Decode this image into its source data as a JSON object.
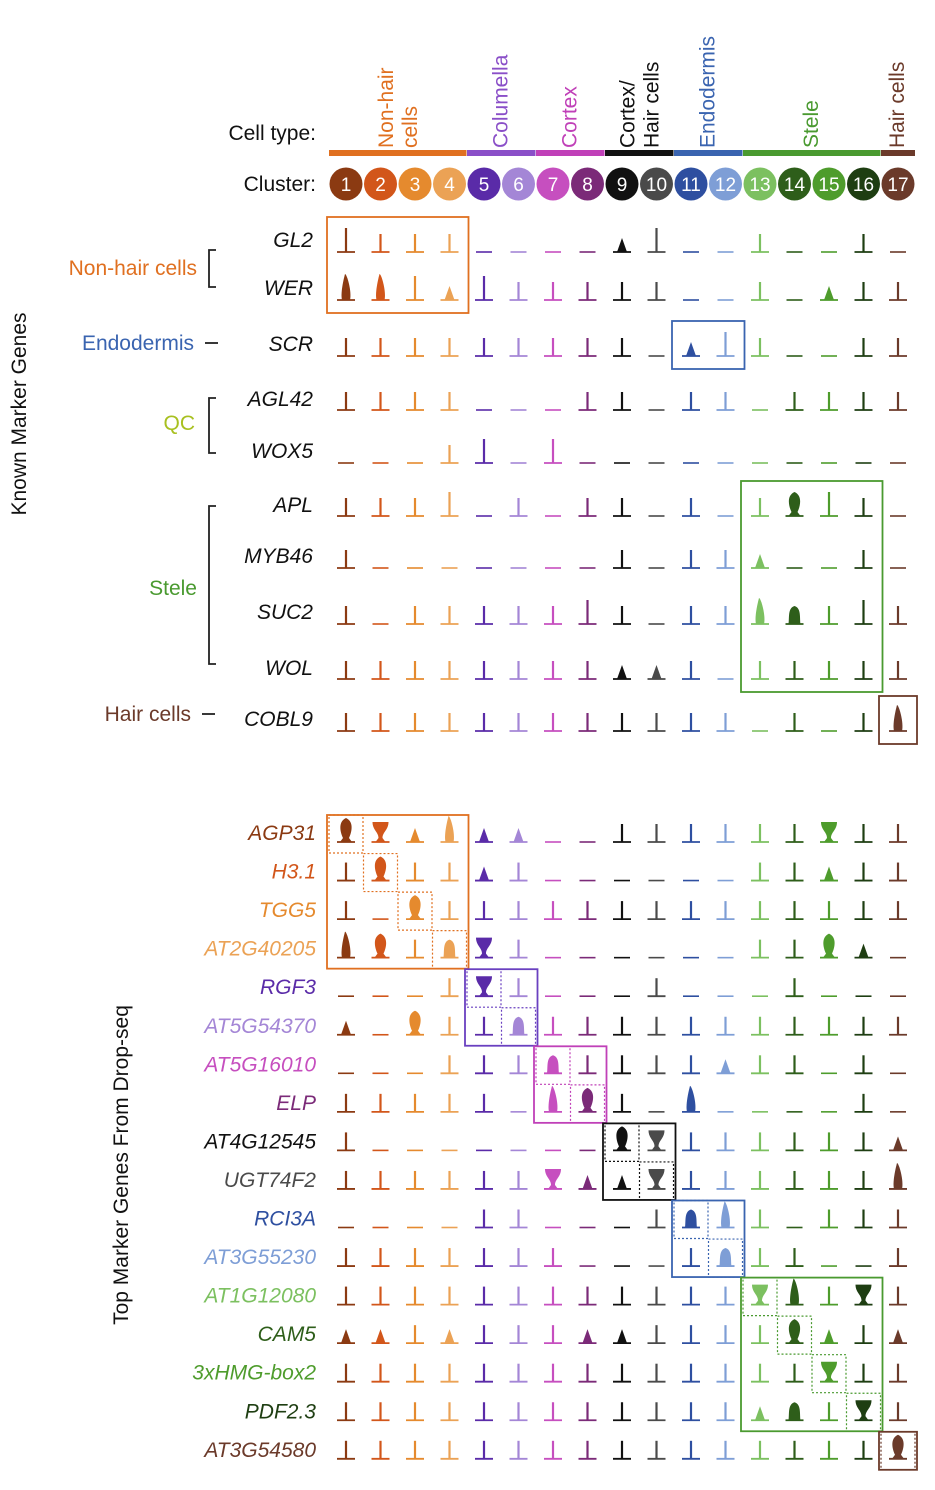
{
  "header": {
    "cell_type_label": "Cell type:",
    "cluster_label": "Cluster:"
  },
  "cell_types": [
    {
      "name": "Non-hair\ncells",
      "color": "#E07020",
      "clusters": [
        1,
        4
      ]
    },
    {
      "name": "Columella",
      "color": "#8A4FC8",
      "clusters": [
        5,
        6
      ]
    },
    {
      "name": "Cortex",
      "color": "#C040B8",
      "clusters": [
        7,
        8
      ]
    },
    {
      "name": "Cortex/\nHair cells",
      "color": "#111111",
      "clusters": [
        9,
        10
      ]
    },
    {
      "name": "Endodermis",
      "color": "#3A64B0",
      "clusters": [
        11,
        12
      ]
    },
    {
      "name": "Stele",
      "color": "#4A9A30",
      "clusters": [
        13,
        16
      ]
    },
    {
      "name": "Hair cells",
      "color": "#6B3A2A",
      "clusters": [
        17,
        17
      ]
    }
  ],
  "clusters": [
    {
      "id": "1",
      "color": "#8B3A12"
    },
    {
      "id": "2",
      "color": "#D2561A"
    },
    {
      "id": "3",
      "color": "#E58A2E"
    },
    {
      "id": "4",
      "color": "#EBA255"
    },
    {
      "id": "5",
      "color": "#5A2BA8"
    },
    {
      "id": "6",
      "color": "#A486D6"
    },
    {
      "id": "7",
      "color": "#C64FBF"
    },
    {
      "id": "8",
      "color": "#7B2A78"
    },
    {
      "id": "9",
      "color": "#111111"
    },
    {
      "id": "10",
      "color": "#4A4A4A"
    },
    {
      "id": "11",
      "color": "#2E4FA0"
    },
    {
      "id": "12",
      "color": "#7E9ED6"
    },
    {
      "id": "13",
      "color": "#7CC060"
    },
    {
      "id": "14",
      "color": "#2E5E1A"
    },
    {
      "id": "15",
      "color": "#4E9C2C"
    },
    {
      "id": "16",
      "color": "#1E3E12"
    },
    {
      "id": "17",
      "color": "#6B3A2A"
    }
  ],
  "known_markers": {
    "axis_label": "Known Marker Genes",
    "genes": [
      "GL2",
      "WER",
      "SCR",
      "AGL42",
      "WOX5",
      "APL",
      "MYB46",
      "SUC2",
      "WOL",
      "COBL9"
    ],
    "groups": [
      {
        "label": "Non-hair cells",
        "color": "#E07020",
        "rows": [
          0,
          1
        ]
      },
      {
        "label": "Endodermis",
        "color": "#3A64B0",
        "rows": [
          2,
          2
        ]
      },
      {
        "label": "QC",
        "color": "#A8C020",
        "rows": [
          3,
          4
        ]
      },
      {
        "label": "Stele",
        "color": "#4A9A30",
        "rows": [
          5,
          8
        ]
      },
      {
        "label": "Hair cells",
        "color": "#6B3A2A",
        "rows": [
          9,
          9
        ]
      }
    ],
    "highlights": [
      {
        "rows": [
          0,
          1
        ],
        "clusters": [
          1,
          4
        ],
        "color": "#E07020"
      },
      {
        "rows": [
          2,
          2
        ],
        "clusters": [
          11,
          12
        ],
        "color": "#3A64B0"
      },
      {
        "rows": [
          5,
          8
        ],
        "clusters": [
          13,
          16
        ],
        "color": "#4A9A30"
      },
      {
        "rows": [
          9,
          9
        ],
        "clusters": [
          17,
          17
        ],
        "color": "#6B3A2A"
      }
    ]
  },
  "top_markers": {
    "axis_label": "Top Marker Genes From Drop-seq",
    "genes": [
      {
        "name": "AGP31",
        "color": "#8B3A12"
      },
      {
        "name": "H3.1",
        "color": "#D2561A"
      },
      {
        "name": "TGG5",
        "color": "#E58A2E"
      },
      {
        "name": "AT2G40205",
        "color": "#EBA255"
      },
      {
        "name": "RGF3",
        "color": "#5A2BA8"
      },
      {
        "name": "AT5G54370",
        "color": "#A486D6"
      },
      {
        "name": "AT5G16010",
        "color": "#C64FBF"
      },
      {
        "name": "ELP",
        "color": "#7B2A78"
      },
      {
        "name": "AT4G12545",
        "color": "#111111"
      },
      {
        "name": "UGT74F2",
        "color": "#4A4A4A"
      },
      {
        "name": "RCI3A",
        "color": "#2E4FA0"
      },
      {
        "name": "AT3G55230",
        "color": "#7E9ED6"
      },
      {
        "name": "AT1G12080",
        "color": "#7CC060"
      },
      {
        "name": "CAM5",
        "color": "#2E5E1A"
      },
      {
        "name": "3xHMG-box2",
        "color": "#4E9C2C"
      },
      {
        "name": "PDF2.3",
        "color": "#1E3E12"
      },
      {
        "name": "AT3G54580",
        "color": "#6B3A2A"
      }
    ],
    "highlights": [
      {
        "rows": [
          0,
          3
        ],
        "clusters": [
          1,
          4
        ],
        "color": "#E07020"
      },
      {
        "rows": [
          4,
          5
        ],
        "clusters": [
          5,
          6
        ],
        "color": "#6A40C0"
      },
      {
        "rows": [
          6,
          7
        ],
        "clusters": [
          7,
          8
        ],
        "color": "#C040B8"
      },
      {
        "rows": [
          8,
          9
        ],
        "clusters": [
          9,
          10
        ],
        "color": "#111111"
      },
      {
        "rows": [
          10,
          11
        ],
        "clusters": [
          11,
          12
        ],
        "color": "#3A64B0"
      },
      {
        "rows": [
          12,
          15
        ],
        "clusters": [
          13,
          16
        ],
        "color": "#4A9A30"
      },
      {
        "rows": [
          16,
          16
        ],
        "clusters": [
          17,
          17
        ],
        "color": "#6B3A2A"
      }
    ]
  },
  "expression_known": [
    [
      2,
      1,
      1,
      1,
      0,
      0,
      0,
      0,
      3,
      2,
      0,
      0,
      1,
      0,
      0,
      1,
      0
    ],
    [
      4,
      4,
      2,
      3,
      2,
      1,
      1,
      1,
      1,
      1,
      0,
      0,
      1,
      0,
      3,
      1,
      1
    ],
    [
      1,
      1,
      1,
      1,
      1,
      1,
      1,
      1,
      1,
      0,
      3,
      2,
      1,
      0,
      0,
      1,
      1
    ],
    [
      1,
      1,
      1,
      1,
      0,
      0,
      0,
      1,
      1,
      0,
      1,
      1,
      0,
      1,
      1,
      1,
      1
    ],
    [
      0,
      0,
      0,
      1,
      2,
      0,
      2,
      0,
      0,
      0,
      0,
      0,
      0,
      0,
      0,
      0,
      0
    ],
    [
      1,
      1,
      1,
      2,
      0,
      1,
      0,
      1,
      1,
      0,
      1,
      0,
      1,
      6,
      2,
      1,
      0
    ],
    [
      1,
      0,
      0,
      0,
      0,
      0,
      0,
      0,
      1,
      0,
      1,
      1,
      3,
      0,
      0,
      1,
      0
    ],
    [
      1,
      0,
      1,
      1,
      1,
      1,
      1,
      2,
      1,
      0,
      1,
      1,
      4,
      5,
      1,
      2,
      1
    ],
    [
      1,
      1,
      1,
      1,
      1,
      1,
      1,
      1,
      3,
      3,
      1,
      0,
      1,
      1,
      1,
      1,
      1
    ],
    [
      1,
      1,
      1,
      1,
      1,
      1,
      1,
      1,
      1,
      1,
      1,
      1,
      0,
      1,
      0,
      1,
      4
    ]
  ],
  "expression_top": [
    [
      6,
      7,
      3,
      4,
      3,
      3,
      0,
      0,
      1,
      1,
      1,
      1,
      1,
      1,
      7,
      1,
      1
    ],
    [
      1,
      6,
      1,
      1,
      3,
      1,
      0,
      0,
      0,
      0,
      0,
      0,
      1,
      1,
      3,
      1,
      1
    ],
    [
      1,
      0,
      6,
      1,
      1,
      1,
      1,
      1,
      1,
      1,
      1,
      1,
      1,
      1,
      1,
      1,
      1
    ],
    [
      4,
      6,
      1,
      5,
      7,
      1,
      0,
      0,
      0,
      0,
      0,
      0,
      1,
      1,
      6,
      3,
      0
    ],
    [
      0,
      0,
      0,
      1,
      7,
      1,
      0,
      0,
      0,
      1,
      0,
      0,
      0,
      1,
      0,
      0,
      0
    ],
    [
      3,
      0,
      6,
      1,
      1,
      5,
      1,
      1,
      1,
      1,
      1,
      1,
      1,
      1,
      1,
      1,
      1
    ],
    [
      0,
      0,
      0,
      1,
      1,
      1,
      5,
      1,
      1,
      1,
      1,
      3,
      1,
      1,
      0,
      1,
      0
    ],
    [
      1,
      1,
      1,
      1,
      1,
      0,
      4,
      6,
      1,
      0,
      4,
      0,
      0,
      0,
      0,
      1,
      0
    ],
    [
      1,
      0,
      0,
      0,
      0,
      0,
      0,
      0,
      6,
      7,
      1,
      1,
      1,
      1,
      1,
      1,
      3
    ],
    [
      1,
      1,
      1,
      1,
      1,
      1,
      7,
      3,
      3,
      7,
      1,
      1,
      1,
      1,
      1,
      1,
      4
    ],
    [
      0,
      0,
      0,
      0,
      1,
      1,
      0,
      0,
      0,
      1,
      5,
      4,
      1,
      0,
      1,
      1,
      1
    ],
    [
      1,
      1,
      1,
      1,
      1,
      1,
      1,
      0,
      0,
      0,
      1,
      5,
      1,
      1,
      0,
      0,
      1
    ],
    [
      1,
      1,
      1,
      1,
      1,
      1,
      1,
      1,
      1,
      1,
      1,
      1,
      7,
      4,
      1,
      7,
      1
    ],
    [
      3,
      3,
      1,
      3,
      1,
      1,
      1,
      3,
      3,
      1,
      1,
      1,
      1,
      6,
      3,
      1,
      3
    ],
    [
      1,
      1,
      1,
      1,
      1,
      1,
      1,
      1,
      1,
      1,
      1,
      1,
      1,
      1,
      7,
      1,
      1
    ],
    [
      1,
      1,
      1,
      1,
      1,
      1,
      1,
      1,
      1,
      1,
      1,
      1,
      3,
      5,
      1,
      7,
      1
    ],
    [
      1,
      1,
      1,
      1,
      1,
      1,
      1,
      1,
      1,
      1,
      1,
      1,
      1,
      1,
      1,
      1,
      6
    ]
  ]
}
